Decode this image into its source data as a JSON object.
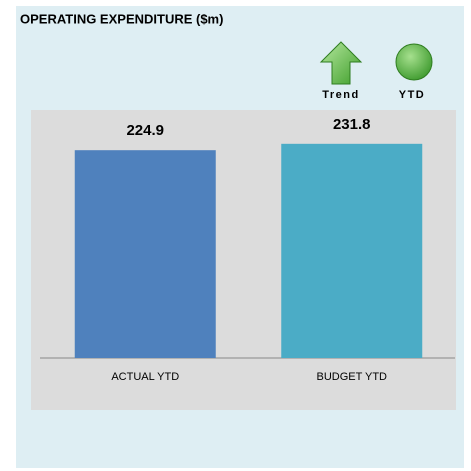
{
  "chart_data": {
    "type": "bar",
    "title": "OPERATING EXPENDITURE ($m)",
    "indicators": [
      "Trend",
      "YTD"
    ],
    "categories": [
      "ACTUAL YTD",
      "BUDGET YTD"
    ],
    "values": [
      224.9,
      231.8
    ],
    "colors": [
      "#4f81bd",
      "#4bacc6"
    ],
    "ylim": [
      0,
      250
    ]
  }
}
